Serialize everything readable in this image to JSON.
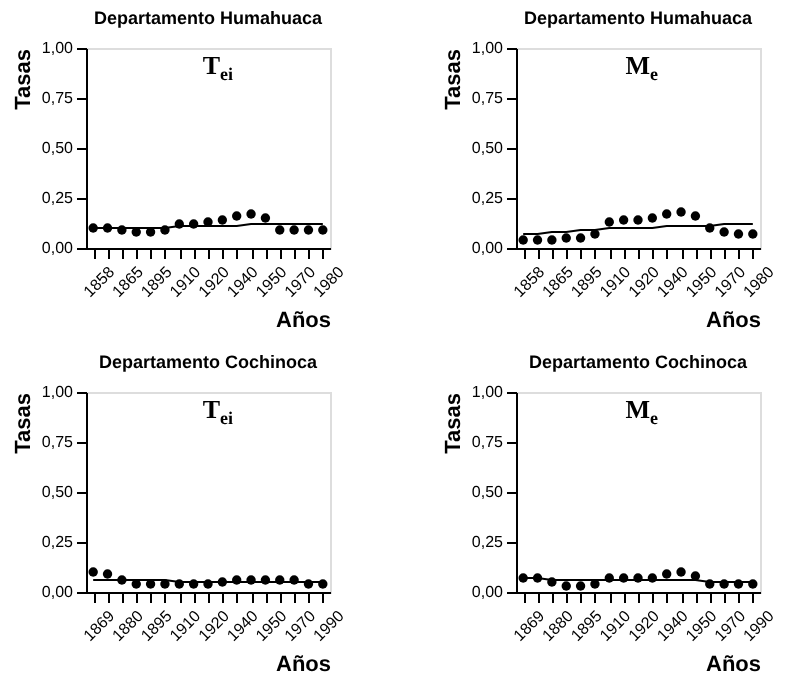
{
  "chart_data": [
    {
      "type": "scatter",
      "title": "Departamento Humahuaca",
      "xlabel": "Años",
      "ylabel": "Tasas",
      "annotations": [
        "T$_{ei}$"
      ],
      "categories": [
        "1858",
        null,
        "1865",
        null,
        "1895",
        null,
        "1910",
        null,
        "1920",
        null,
        "1940",
        null,
        "1950",
        null,
        "1970",
        null,
        "1980"
      ],
      "ylim": [
        0,
        1
      ],
      "yticks": [
        {
          "value": 0,
          "label": "0,00"
        },
        {
          "value": 0.25,
          "label": "0,25"
        },
        {
          "value": 0.5,
          "label": "0,50"
        },
        {
          "value": 0.75,
          "label": "0,75"
        },
        {
          "value": 1,
          "label": "1,00"
        }
      ],
      "grid": false,
      "marker": "circle",
      "series": [
        {
          "color": "#000000",
          "values": [
            0.1,
            0.1,
            0.09,
            0.08,
            0.08,
            0.09,
            0.12,
            0.12,
            0.13,
            0.14,
            0.16,
            0.17,
            0.15,
            0.09,
            0.09,
            0.09,
            0.09
          ]
        },
        {
          "type": "line",
          "marker": "none",
          "color": "#000000",
          "values": [
            0.1,
            0.1,
            0.1,
            0.1,
            0.1,
            0.1,
            0.11,
            0.11,
            0.11,
            0.11,
            0.11,
            0.12,
            0.12,
            0.12,
            0.12,
            0.12,
            0.12
          ]
        }
      ]
    },
    {
      "type": "scatter",
      "title": "Departamento Humahuaca",
      "xlabel": "Años",
      "ylabel": "Tasas",
      "annotations": [
        "M$_{e}$"
      ],
      "categories": [
        "1858",
        null,
        "1865",
        null,
        "1895",
        null,
        "1910",
        null,
        "1920",
        null,
        "1940",
        null,
        "1950",
        null,
        "1970",
        null,
        "1980"
      ],
      "ylim": [
        0,
        1
      ],
      "yticks": [
        {
          "value": 0,
          "label": "0,00"
        },
        {
          "value": 0.25,
          "label": "0,25"
        },
        {
          "value": 0.5,
          "label": "0,50"
        },
        {
          "value": 0.75,
          "label": "0,75"
        },
        {
          "value": 1,
          "label": "1,00"
        }
      ],
      "grid": false,
      "marker": "circle",
      "series": [
        {
          "color": "#000000",
          "values": [
            0.04,
            0.04,
            0.04,
            0.05,
            0.05,
            0.07,
            0.13,
            0.14,
            0.14,
            0.15,
            0.17,
            0.18,
            0.16,
            0.1,
            0.08,
            0.07,
            0.07
          ]
        },
        {
          "type": "line",
          "marker": "none",
          "color": "#000000",
          "values": [
            0.07,
            0.07,
            0.08,
            0.08,
            0.09,
            0.09,
            0.1,
            0.1,
            0.1,
            0.1,
            0.11,
            0.11,
            0.11,
            0.11,
            0.12,
            0.12,
            0.12
          ]
        }
      ]
    },
    {
      "type": "scatter",
      "title": "Departamento Cochinoca",
      "xlabel": "Años",
      "ylabel": "Tasas",
      "annotations": [
        "T$_{ei}$"
      ],
      "categories": [
        "1869",
        null,
        "1880",
        null,
        "1895",
        null,
        "1910",
        null,
        "1920",
        null,
        "1940",
        null,
        "1950",
        null,
        "1970",
        null,
        "1990"
      ],
      "ylim": [
        0,
        1
      ],
      "yticks": [
        {
          "value": 0,
          "label": "0,00"
        },
        {
          "value": 0.25,
          "label": "0,25"
        },
        {
          "value": 0.5,
          "label": "0,50"
        },
        {
          "value": 0.75,
          "label": "0,75"
        },
        {
          "value": 1,
          "label": "1,00"
        }
      ],
      "grid": false,
      "marker": "circle",
      "series": [
        {
          "color": "#000000",
          "values": [
            0.1,
            0.09,
            0.06,
            0.04,
            0.04,
            0.04,
            0.04,
            0.04,
            0.04,
            0.05,
            0.06,
            0.06,
            0.06,
            0.06,
            0.06,
            0.04,
            0.04
          ]
        },
        {
          "type": "line",
          "marker": "none",
          "color": "#000000",
          "values": [
            0.06,
            0.06,
            0.06,
            0.06,
            0.06,
            0.06,
            0.05,
            0.05,
            0.05,
            0.05,
            0.05,
            0.05,
            0.05,
            0.05,
            0.05,
            0.05,
            0.05
          ]
        }
      ]
    },
    {
      "type": "scatter",
      "title": "Departamento Cochinoca",
      "xlabel": "Años",
      "ylabel": "Tasas",
      "annotations": [
        "M$_{e}$"
      ],
      "categories": [
        "1869",
        null,
        "1880",
        null,
        "1895",
        null,
        "1910",
        null,
        "1920",
        null,
        "1940",
        null,
        "1950",
        null,
        "1970",
        null,
        "1990"
      ],
      "ylim": [
        0,
        1
      ],
      "yticks": [
        {
          "value": 0,
          "label": "0,00"
        },
        {
          "value": 0.25,
          "label": "0,25"
        },
        {
          "value": 0.5,
          "label": "0,50"
        },
        {
          "value": 0.75,
          "label": "0,75"
        },
        {
          "value": 1,
          "label": "1,00"
        }
      ],
      "grid": false,
      "marker": "circle",
      "series": [
        {
          "color": "#000000",
          "values": [
            0.07,
            0.07,
            0.05,
            0.03,
            0.03,
            0.04,
            0.07,
            0.07,
            0.07,
            0.07,
            0.09,
            0.1,
            0.08,
            0.04,
            0.04,
            0.04,
            0.04
          ]
        },
        {
          "type": "line",
          "marker": "none",
          "color": "#000000",
          "values": [
            0.07,
            0.07,
            0.06,
            0.06,
            0.06,
            0.06,
            0.06,
            0.06,
            0.06,
            0.06,
            0.06,
            0.06,
            0.06,
            0.05,
            0.05,
            0.05,
            0.05
          ]
        }
      ]
    }
  ]
}
